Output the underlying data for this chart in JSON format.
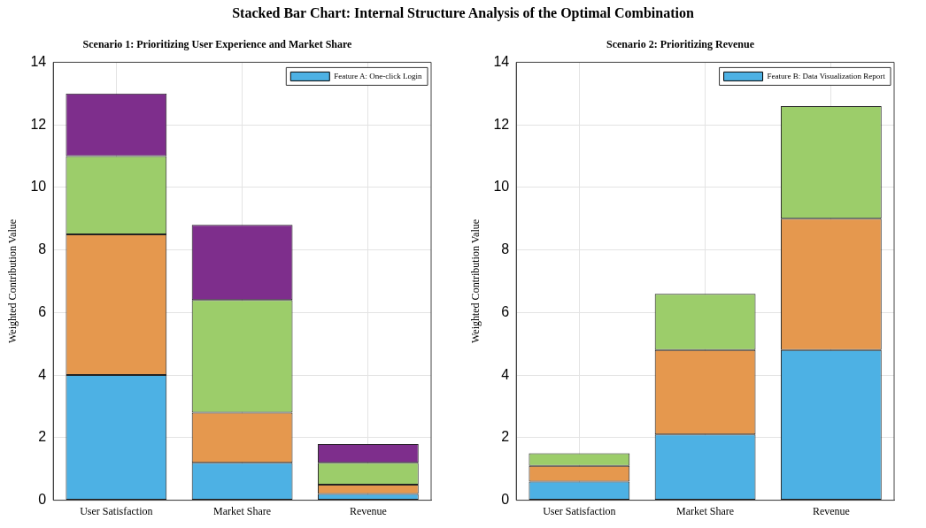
{
  "chart_data": [
    {
      "type": "bar",
      "title": "Stacked Bar Chart: Internal Structure Analysis of the Optimal Combination",
      "subtitle": "Scenario 1: Prioritizing User Experience and Market Share",
      "ylabel": "Weighted Contribution Value",
      "categories": [
        "User Satisfaction",
        "Market Share",
        "Revenue"
      ],
      "stacked": true,
      "series": [
        {
          "name": "Feature A: One-click Login",
          "color": "#4db1e4",
          "values": [
            4,
            1.2,
            0.2
          ]
        },
        {
          "color": "#e5984e",
          "values": [
            4.5,
            1.6,
            0.3
          ]
        },
        {
          "color": "#9ccd6a",
          "values": [
            2.5,
            3.6,
            0.7
          ]
        },
        {
          "color": "#7e2e8c",
          "values": [
            2,
            2.4,
            0.6
          ]
        }
      ],
      "ylim": [
        0,
        14
      ],
      "yticks": [
        0,
        2,
        4,
        6,
        8,
        10,
        12,
        14
      ],
      "grid": true,
      "legend": "top right"
    },
    {
      "type": "bar",
      "subtitle": "Scenario 2: Prioritizing Revenue",
      "ylabel": "Weighted Contribution Value",
      "categories": [
        "User Satisfaction",
        "Market Share",
        "Revenue"
      ],
      "stacked": true,
      "series": [
        {
          "name": "Feature B: Data Visualization Report",
          "color": "#4db1e4",
          "values": [
            0.6,
            2.1,
            4.8
          ]
        },
        {
          "color": "#e5984e",
          "values": [
            0.5,
            2.7,
            4.2
          ]
        },
        {
          "color": "#9ccd6a",
          "values": [
            0.4,
            1.8,
            3.6
          ]
        }
      ],
      "ylim": [
        0,
        14
      ],
      "yticks": [
        0,
        2,
        4,
        6,
        8,
        10,
        12,
        14
      ],
      "grid": true,
      "legend": "top right"
    }
  ]
}
